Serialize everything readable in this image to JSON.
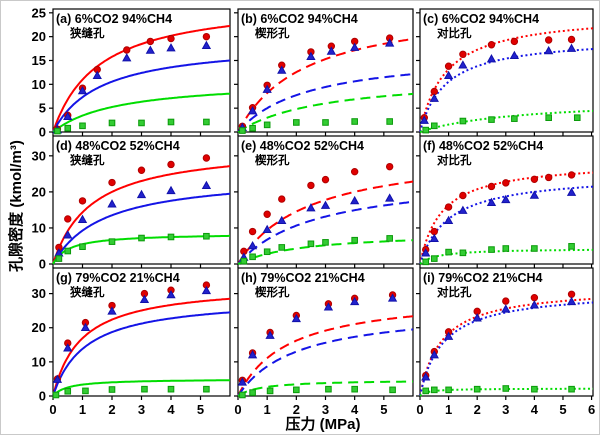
{
  "figure": {
    "ylabel": "孔隙密度 (kmol/m³)",
    "xlabel": "压力 (MPa)",
    "background": "#ffffff",
    "colors": {
      "red_line": "#ff0000",
      "blue_line": "#1414e6",
      "green_line": "#00dd00",
      "red_marker": "#e00000",
      "blue_marker": "#2222cc",
      "green_marker": "#33cc33",
      "red_marker_edge": "#b00000",
      "blue_marker_edge": "#1111aa",
      "green_marker_edge": "#0a9a0a",
      "axis": "#000000"
    }
  },
  "chart_data": [
    {
      "id": "a",
      "tag": "(a)",
      "mixture": "6%CO2 94%CH4",
      "pore": "狭缝孔",
      "type": "line",
      "line_style": "solid",
      "xlim": [
        0,
        6
      ],
      "ylim": [
        0,
        25.8
      ],
      "xticks": [
        0,
        1,
        2,
        3,
        4,
        5
      ],
      "yticks": [
        0,
        5,
        10,
        15,
        20,
        25
      ],
      "show_xtick_labels": false,
      "show_ytick_labels": true,
      "curves": [
        {
          "color": "red",
          "model": "langmuir",
          "qmax": 28,
          "k": 1.55
        },
        {
          "color": "blue",
          "model": "langmuir",
          "qmax": 19,
          "k": 1.6
        },
        {
          "color": "green",
          "model": "langmuir",
          "qmax": 11,
          "k": 2.2
        }
      ],
      "points": [
        {
          "color": "red",
          "marker": "circle",
          "x": [
            0.15,
            0.5,
            1,
            1.5,
            2.5,
            3.3,
            4,
            5.2
          ],
          "y": [
            0.6,
            3.5,
            9.2,
            13.1,
            17.2,
            19,
            19.6,
            20
          ]
        },
        {
          "color": "blue",
          "marker": "triangle",
          "x": [
            0.15,
            0.5,
            1,
            1.5,
            2.5,
            3.3,
            4,
            5.2
          ],
          "y": [
            0.4,
            3.2,
            8.6,
            11.8,
            15.5,
            17.1,
            17.6,
            18.1
          ]
        },
        {
          "color": "green",
          "marker": "square",
          "x": [
            0.15,
            0.5,
            1,
            2,
            3,
            4,
            5.2
          ],
          "y": [
            0.2,
            0.8,
            1.3,
            1.9,
            1.9,
            2.1,
            2.1
          ]
        }
      ]
    },
    {
      "id": "b",
      "tag": "(b)",
      "mixture": "6%CO2 94%CH4",
      "pore": "楔形孔",
      "type": "line",
      "line_style": "dashed",
      "xlim": [
        0,
        6
      ],
      "ylim": [
        0,
        25.8
      ],
      "xticks": [
        0,
        1,
        2,
        3,
        4,
        5
      ],
      "yticks": [
        0,
        5,
        10,
        15,
        20,
        25
      ],
      "show_xtick_labels": false,
      "show_ytick_labels": false,
      "curves": [
        {
          "color": "red",
          "model": "langmuir",
          "qmax": 27,
          "k": 2.3
        },
        {
          "color": "blue",
          "model": "langmuir",
          "qmax": 17,
          "k": 2.4
        },
        {
          "color": "green",
          "model": "langmuir",
          "qmax": 12,
          "k": 3.0
        }
      ],
      "points": [
        {
          "color": "red",
          "marker": "circle",
          "x": [
            0.15,
            0.5,
            1,
            1.5,
            2.5,
            3.2,
            4,
            5.2
          ],
          "y": [
            1.2,
            5.1,
            9.8,
            14,
            16.8,
            18,
            19,
            19.7
          ]
        },
        {
          "color": "blue",
          "marker": "triangle",
          "x": [
            0.15,
            0.5,
            1,
            1.5,
            2.5,
            3.2,
            4,
            5.2
          ],
          "y": [
            0.9,
            4.4,
            8.9,
            12.9,
            15.8,
            16.9,
            17.7,
            18.6
          ]
        },
        {
          "color": "green",
          "marker": "square",
          "x": [
            0.15,
            0.5,
            1,
            2,
            3,
            4,
            5.2
          ],
          "y": [
            0.3,
            0.8,
            1.5,
            2,
            2,
            2.2,
            2.2
          ]
        }
      ]
    },
    {
      "id": "c",
      "tag": "(c)",
      "mixture": "6%CO2 94%CH4",
      "pore": "对比孔",
      "type": "line",
      "line_style": "dotted",
      "xlim": [
        0,
        6.05
      ],
      "ylim": [
        0,
        25.8
      ],
      "xticks": [
        0,
        1,
        2,
        3,
        4,
        5,
        6
      ],
      "yticks": [
        0,
        5,
        10,
        15,
        20,
        25
      ],
      "show_xtick_labels": false,
      "show_ytick_labels": false,
      "curves": [
        {
          "color": "red",
          "model": "langmuir",
          "qmax": 25,
          "k": 0.9
        },
        {
          "color": "blue",
          "model": "langmuir",
          "qmax": 20,
          "k": 0.9
        },
        {
          "color": "green",
          "model": "langmuir",
          "qmax": 7,
          "k": 3.5
        }
      ],
      "points": [
        {
          "color": "red",
          "marker": "circle",
          "x": [
            0.15,
            0.5,
            1,
            1.5,
            2.5,
            3.3,
            4.5,
            5.3
          ],
          "y": [
            3,
            8.5,
            13.8,
            16.3,
            18.3,
            19,
            19.3,
            19.4
          ]
        },
        {
          "color": "blue",
          "marker": "triangle",
          "x": [
            0.15,
            0.5,
            1,
            1.5,
            2.5,
            3.3,
            4.5,
            5.3
          ],
          "y": [
            2.4,
            7,
            11.8,
            14,
            15.3,
            16,
            17,
            17.5
          ]
        },
        {
          "color": "green",
          "marker": "square",
          "x": [
            0.2,
            0.5,
            1.5,
            2.5,
            3.3,
            4.5,
            5.5
          ],
          "y": [
            0.4,
            1.3,
            2.3,
            2.6,
            2.8,
            3,
            3
          ]
        }
      ]
    },
    {
      "id": "d",
      "tag": "(d)",
      "mixture": "48%CO2 52%CH4",
      "pore": "狭缝孔",
      "type": "line",
      "line_style": "solid",
      "xlim": [
        0,
        6
      ],
      "ylim": [
        0,
        35.5
      ],
      "xticks": [
        0,
        1,
        2,
        3,
        4,
        5
      ],
      "yticks": [
        0,
        10,
        20,
        30
      ],
      "show_xtick_labels": false,
      "show_ytick_labels": true,
      "curves": [
        {
          "color": "red",
          "model": "langmuir",
          "qmax": 33,
          "k": 1.3
        },
        {
          "color": "blue",
          "model": "langmuir",
          "qmax": 25,
          "k": 1.7
        },
        {
          "color": "green",
          "model": "langmuir",
          "qmax": 8.5,
          "k": 0.55
        }
      ],
      "points": [
        {
          "color": "red",
          "marker": "circle",
          "x": [
            0.2,
            0.5,
            1,
            2,
            3,
            4,
            5.2
          ],
          "y": [
            4.6,
            12.5,
            17.5,
            22.6,
            26,
            27.6,
            29.4
          ]
        },
        {
          "color": "blue",
          "marker": "triangle",
          "x": [
            0.2,
            0.5,
            1,
            2,
            3,
            4,
            5.2
          ],
          "y": [
            3,
            8,
            12.3,
            16.6,
            19.2,
            20.3,
            21.7
          ]
        },
        {
          "color": "green",
          "marker": "square",
          "x": [
            0.2,
            0.5,
            1,
            2,
            3,
            4,
            5.2
          ],
          "y": [
            1.5,
            3.6,
            4.8,
            6.2,
            7.2,
            7.5,
            7.7
          ]
        }
      ]
    },
    {
      "id": "e",
      "tag": "(e)",
      "mixture": "48%CO2 52%CH4",
      "pore": "楔形孔",
      "type": "line",
      "line_style": "dashed",
      "xlim": [
        0,
        6
      ],
      "ylim": [
        0,
        35.5
      ],
      "xticks": [
        0,
        1,
        2,
        3,
        4,
        5
      ],
      "yticks": [
        0,
        10,
        20,
        30
      ],
      "show_xtick_labels": false,
      "show_ytick_labels": false,
      "curves": [
        {
          "color": "red",
          "model": "langmuir",
          "qmax": 32,
          "k": 2.4
        },
        {
          "color": "blue",
          "model": "langmuir",
          "qmax": 25,
          "k": 2.7
        },
        {
          "color": "green",
          "model": "langmuir",
          "qmax": 9,
          "k": 2.2
        }
      ],
      "points": [
        {
          "color": "red",
          "marker": "circle",
          "x": [
            0.2,
            0.5,
            1,
            1.5,
            2.5,
            3,
            4,
            5.2
          ],
          "y": [
            3.5,
            9,
            13.8,
            18,
            21.8,
            23.4,
            25.6,
            27
          ]
        },
        {
          "color": "blue",
          "marker": "triangle",
          "x": [
            0.2,
            0.5,
            1,
            1.5,
            2.5,
            3,
            4,
            5.2
          ],
          "y": [
            1.8,
            5,
            9.5,
            12,
            15.5,
            16.2,
            17.5,
            18.2
          ]
        },
        {
          "color": "green",
          "marker": "square",
          "x": [
            0.2,
            0.5,
            1,
            1.5,
            2.5,
            3,
            4,
            5.2
          ],
          "y": [
            0.8,
            2,
            3.4,
            4.6,
            5.6,
            6,
            6.6,
            7.1
          ]
        }
      ]
    },
    {
      "id": "f",
      "tag": "(f)",
      "mixture": "48%CO2 52%CH4",
      "pore": "对比孔",
      "type": "line",
      "line_style": "dotted",
      "xlim": [
        0,
        6.05
      ],
      "ylim": [
        0,
        35.5
      ],
      "xticks": [
        0,
        1,
        2,
        3,
        4,
        5,
        6
      ],
      "yticks": [
        0,
        10,
        20,
        30
      ],
      "show_xtick_labels": false,
      "show_ytick_labels": false,
      "curves": [
        {
          "color": "red",
          "model": "langmuir",
          "qmax": 28.5,
          "k": 0.75
        },
        {
          "color": "blue",
          "model": "langmuir",
          "qmax": 25,
          "k": 1.0
        },
        {
          "color": "green",
          "model": "langmuir",
          "qmax": 4.3,
          "k": 0.6
        }
      ],
      "points": [
        {
          "color": "red",
          "marker": "circle",
          "x": [
            0.2,
            0.5,
            1,
            1.5,
            2.5,
            3,
            4,
            4.5,
            5.3
          ],
          "y": [
            4,
            9,
            15.8,
            19,
            21.5,
            22.5,
            23.5,
            24,
            24.7
          ]
        },
        {
          "color": "blue",
          "marker": "triangle",
          "x": [
            0.2,
            0.5,
            1,
            1.5,
            2.5,
            3,
            4,
            5.3
          ],
          "y": [
            3,
            7,
            12,
            14.8,
            17,
            17.8,
            19,
            19.8
          ]
        },
        {
          "color": "green",
          "marker": "square",
          "x": [
            0.2,
            0.5,
            1,
            1.5,
            2.5,
            3,
            4,
            5.3
          ],
          "y": [
            0.6,
            1.5,
            3.3,
            3.1,
            4,
            4.3,
            4.3,
            4.9
          ]
        }
      ]
    },
    {
      "id": "g",
      "tag": "(g)",
      "mixture": "79%CO2 21%CH4",
      "pore": "狭缝孔",
      "type": "line",
      "line_style": "solid",
      "xlim": [
        0,
        6
      ],
      "ylim": [
        0,
        37.5
      ],
      "xticks": [
        0,
        1,
        2,
        3,
        4,
        5
      ],
      "yticks": [
        0,
        10,
        20,
        30
      ],
      "show_xtick_labels": true,
      "show_ytick_labels": true,
      "curves": [
        {
          "color": "red",
          "model": "langmuir",
          "qmax": 33,
          "k": 0.95
        },
        {
          "color": "blue",
          "model": "langmuir",
          "qmax": 29,
          "k": 1.1
        },
        {
          "color": "green",
          "model": "langmuir",
          "qmax": 5,
          "k": 0.5
        }
      ],
      "points": [
        {
          "color": "red",
          "marker": "circle",
          "x": [
            0.15,
            0.5,
            1.1,
            2,
            3.1,
            4,
            5.2
          ],
          "y": [
            5,
            15.5,
            21.5,
            26.5,
            30,
            31,
            32.5
          ]
        },
        {
          "color": "blue",
          "marker": "triangle",
          "x": [
            0.15,
            0.5,
            1.1,
            2,
            3.1,
            4,
            5.2
          ],
          "y": [
            4.8,
            14,
            20,
            24.8,
            28.2,
            29.6,
            30.8
          ]
        },
        {
          "color": "green",
          "marker": "square",
          "x": [
            0.1,
            0.5,
            1.1,
            2,
            3.1,
            4,
            5.2
          ],
          "y": [
            0.3,
            1.4,
            1.5,
            1.9,
            2,
            2,
            2
          ]
        }
      ]
    },
    {
      "id": "h",
      "tag": "(h)",
      "mixture": "79%CO2 21%CH4",
      "pore": "楔形孔",
      "type": "line",
      "line_style": "dashed",
      "xlim": [
        0,
        6
      ],
      "ylim": [
        0,
        37.5
      ],
      "xticks": [
        0,
        1,
        2,
        3,
        4,
        5
      ],
      "yticks": [
        0,
        10,
        20,
        30
      ],
      "show_xtick_labels": true,
      "show_ytick_labels": false,
      "curves": [
        {
          "color": "red",
          "model": "langmuir",
          "qmax": 30,
          "k": 1.7
        },
        {
          "color": "blue",
          "model": "langmuir",
          "qmax": 26,
          "k": 2.0
        },
        {
          "color": "green",
          "model": "langmuir",
          "qmax": 4.8,
          "k": 0.8
        }
      ],
      "points": [
        {
          "color": "red",
          "marker": "circle",
          "x": [
            0.15,
            0.5,
            1.1,
            2,
            3.1,
            4,
            5.3
          ],
          "y": [
            4.6,
            12.6,
            18.6,
            23.6,
            27,
            28.6,
            29.6
          ]
        },
        {
          "color": "blue",
          "marker": "triangle",
          "x": [
            0.15,
            0.5,
            1.1,
            2,
            3.1,
            4,
            5.3
          ],
          "y": [
            4,
            12,
            17.7,
            22.6,
            26,
            27.6,
            28.6
          ]
        },
        {
          "color": "green",
          "marker": "square",
          "x": [
            0.15,
            0.5,
            1.1,
            2,
            3.1,
            4,
            5.3
          ],
          "y": [
            0.3,
            1,
            1.5,
            1.8,
            2,
            2,
            1.8
          ]
        }
      ]
    },
    {
      "id": "i",
      "tag": "(i)",
      "mixture": "79%CO2 21%CH4",
      "pore": "对比孔",
      "type": "line",
      "line_style": "dotted",
      "xlim": [
        0,
        6.05
      ],
      "ylim": [
        0,
        37.5
      ],
      "xticks": [
        0,
        1,
        2,
        3,
        4,
        5,
        6
      ],
      "yticks": [
        0,
        10,
        20,
        30
      ],
      "show_xtick_labels": true,
      "show_ytick_labels": false,
      "curves": [
        {
          "color": "red",
          "model": "langmuir",
          "qmax": 32,
          "k": 0.75
        },
        {
          "color": "blue",
          "model": "langmuir",
          "qmax": 31,
          "k": 0.8
        },
        {
          "color": "green",
          "model": "langmuir",
          "qmax": 2.2,
          "k": 0.25
        }
      ],
      "points": [
        {
          "color": "red",
          "marker": "circle",
          "x": [
            0.2,
            0.5,
            1,
            2,
            3,
            4,
            5.3
          ],
          "y": [
            6,
            13,
            18.8,
            24.8,
            27.8,
            28.8,
            29.8
          ]
        },
        {
          "color": "blue",
          "marker": "triangle",
          "x": [
            0.2,
            0.5,
            1,
            2,
            3,
            4,
            5.3
          ],
          "y": [
            5.5,
            12,
            17.4,
            22.8,
            25.4,
            26.6,
            27.6
          ]
        },
        {
          "color": "green",
          "marker": "square",
          "x": [
            0.2,
            0.5,
            1,
            2,
            3,
            4,
            5.3
          ],
          "y": [
            1.5,
            1.8,
            1.8,
            2,
            2.2,
            2,
            2
          ]
        }
      ]
    }
  ]
}
